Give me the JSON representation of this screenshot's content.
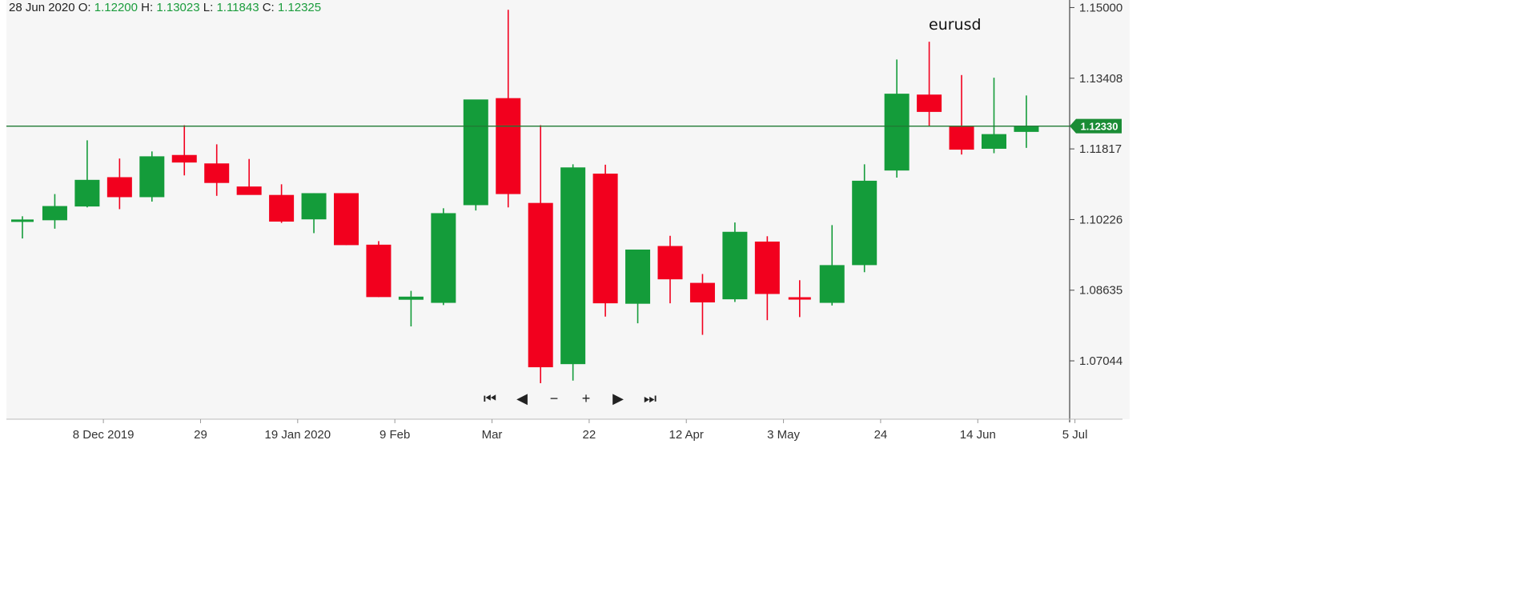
{
  "header": {
    "date": "28 Jun 2020",
    "o_label": "O:",
    "o_value": "1.12200",
    "h_label": "H:",
    "h_value": "1.13023",
    "l_label": "L:",
    "l_value": "1.11843",
    "c_label": "C:",
    "c_value": "1.12325"
  },
  "symbol": "eurusd",
  "controls": {
    "first": "⏮",
    "prev": "◀",
    "zoom_out": "−",
    "zoom_in": "+",
    "next": "▶",
    "last": "⏭"
  },
  "colors": {
    "up": "#149c3a",
    "down": "#f2001e",
    "plot_background": "#f6f6f6",
    "price_line": "#1f7a33",
    "axis": "#444444"
  },
  "chart_data": {
    "type": "candlestick",
    "title": "eurusd",
    "timeframe": "weekly",
    "y_ticks": [
      "1.15000",
      "1.13408",
      "1.11817",
      "1.10226",
      "1.08635",
      "1.07044"
    ],
    "ylim": [
      1.0573,
      1.1517
    ],
    "x_ticks": [
      {
        "label": "8 Dec 2019",
        "index": 2.5
      },
      {
        "label": "29",
        "index": 5.5
      },
      {
        "label": "19 Jan 2020",
        "index": 8.5
      },
      {
        "label": "9 Feb",
        "index": 11.5
      },
      {
        "label": "Mar",
        "index": 14.5
      },
      {
        "label": "22",
        "index": 17.5
      },
      {
        "label": "12 Apr",
        "index": 20.5
      },
      {
        "label": "3 May",
        "index": 23.5
      },
      {
        "label": "24",
        "index": 26.5
      },
      {
        "label": "14 Jun",
        "index": 29.5
      },
      {
        "label": "5 Jul",
        "index": 32.5
      }
    ],
    "current_price": "1.12330",
    "candles": [
      {
        "o": 1.102,
        "h": 1.103,
        "l": 1.098,
        "c": 1.102
      },
      {
        "o": 1.1021,
        "h": 1.108,
        "l": 1.1002,
        "c": 1.1053
      },
      {
        "o": 1.1052,
        "h": 1.1201,
        "l": 1.105,
        "c": 1.1112
      },
      {
        "o": 1.1118,
        "h": 1.116,
        "l": 1.1046,
        "c": 1.1073
      },
      {
        "o": 1.1073,
        "h": 1.1176,
        "l": 1.1063,
        "c": 1.1165
      },
      {
        "o": 1.1168,
        "h": 1.1235,
        "l": 1.1122,
        "c": 1.1151
      },
      {
        "o": 1.1149,
        "h": 1.1192,
        "l": 1.1076,
        "c": 1.1105
      },
      {
        "o": 1.1097,
        "h": 1.1159,
        "l": 1.1081,
        "c": 1.1078
      },
      {
        "o": 1.1078,
        "h": 1.1102,
        "l": 1.1015,
        "c": 1.1018
      },
      {
        "o": 1.1023,
        "h": 1.1082,
        "l": 1.0992,
        "c": 1.1082
      },
      {
        "o": 1.1082,
        "h": 1.1082,
        "l": 1.0965,
        "c": 1.0965
      },
      {
        "o": 1.0966,
        "h": 1.0974,
        "l": 1.0848,
        "c": 1.0848
      },
      {
        "o": 1.0842,
        "h": 1.0862,
        "l": 1.0782,
        "c": 1.0849
      },
      {
        "o": 1.0835,
        "h": 1.1048,
        "l": 1.083,
        "c": 1.1037
      },
      {
        "o": 1.1055,
        "h": 1.129,
        "l": 1.1043,
        "c": 1.1293
      },
      {
        "o": 1.1296,
        "h": 1.1495,
        "l": 1.105,
        "c": 1.108
      },
      {
        "o": 1.106,
        "h": 1.1235,
        "l": 1.0654,
        "c": 1.069
      },
      {
        "o": 1.0697,
        "h": 1.1147,
        "l": 1.066,
        "c": 1.114
      },
      {
        "o": 1.1126,
        "h": 1.1146,
        "l": 1.0804,
        "c": 1.0834
      },
      {
        "o": 1.0833,
        "h": 1.095,
        "l": 1.0789,
        "c": 1.0955
      },
      {
        "o": 1.0963,
        "h": 1.0986,
        "l": 1.0834,
        "c": 1.0888
      },
      {
        "o": 1.088,
        "h": 1.09,
        "l": 1.0763,
        "c": 1.0836
      },
      {
        "o": 1.0843,
        "h": 1.1016,
        "l": 1.0837,
        "c": 1.0995
      },
      {
        "o": 1.0973,
        "h": 1.0985,
        "l": 1.0796,
        "c": 1.0855
      },
      {
        "o": 1.0845,
        "h": 1.0886,
        "l": 1.0803,
        "c": 1.0841
      },
      {
        "o": 1.0835,
        "h": 1.101,
        "l": 1.0829,
        "c": 1.092
      },
      {
        "o": 1.092,
        "h": 1.1147,
        "l": 1.0904,
        "c": 1.111
      },
      {
        "o": 1.1133,
        "h": 1.1383,
        "l": 1.1117,
        "c": 1.1306
      },
      {
        "o": 1.1304,
        "h": 1.1423,
        "l": 1.1232,
        "c": 1.1265
      },
      {
        "o": 1.1232,
        "h": 1.1348,
        "l": 1.1169,
        "c": 1.118
      },
      {
        "o": 1.1182,
        "h": 1.1342,
        "l": 1.1172,
        "c": 1.1215
      },
      {
        "o": 1.122,
        "h": 1.1302,
        "l": 1.1184,
        "c": 1.1232
      }
    ]
  }
}
